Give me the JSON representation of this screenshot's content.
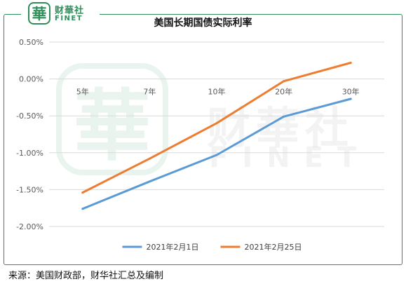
{
  "brand": {
    "badge_char": "華",
    "name_cn": "财華社",
    "name_en": "FINET"
  },
  "source_note": "来源：美国财政部，财华社汇总及编制",
  "chart_data": {
    "type": "line",
    "title": "美国长期国债实际利率",
    "xlabel": "",
    "ylabel": "",
    "categories": [
      "5年",
      "7年",
      "10年",
      "20年",
      "30年"
    ],
    "y_ticks": [
      "0.50%",
      "0.00%",
      "-0.50%",
      "-1.00%",
      "-1.50%",
      "-2.00%"
    ],
    "ylim": [
      -2.0,
      0.5
    ],
    "grid": true,
    "legend_position": "bottom",
    "series": [
      {
        "name": "2021年2月1日",
        "color": "#5b9bd5",
        "values": [
          -1.76,
          -1.39,
          -1.03,
          -0.51,
          -0.27
        ]
      },
      {
        "name": "2021年2月25日",
        "color": "#ed7d31",
        "values": [
          -1.54,
          -1.08,
          -0.6,
          -0.03,
          0.22
        ]
      }
    ]
  }
}
